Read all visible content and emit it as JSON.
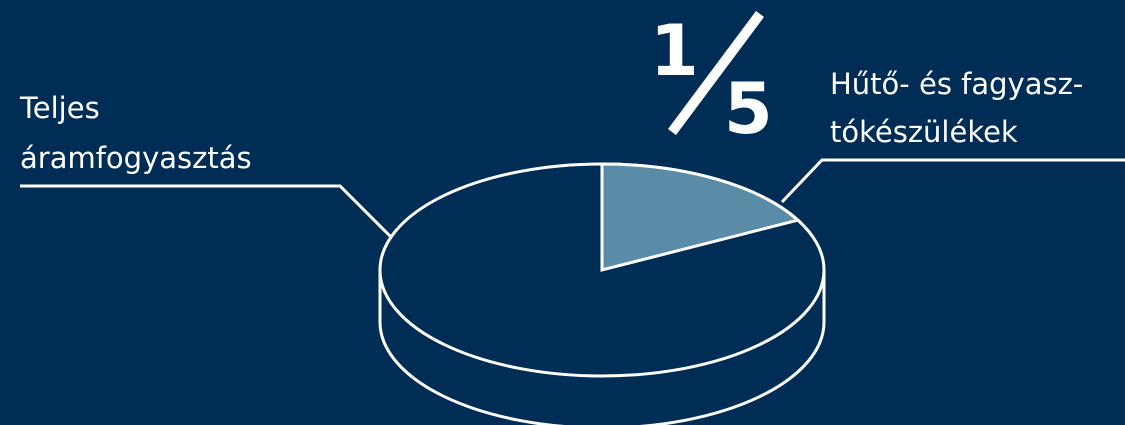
{
  "chart_data": {
    "type": "pie",
    "categories": [
      "Teljes áramfogyasztás",
      "Hűtő- és fagyasztókészülékek"
    ],
    "values": [
      0.8,
      0.2
    ],
    "fraction": {
      "numerator": "1",
      "denominator": "5"
    },
    "labels": {
      "total": [
        "Teljes",
        "áramfogyasztás"
      ],
      "slice": [
        "Hűtő- és fagyasz-",
        "tókészülékek"
      ]
    }
  },
  "colors": {
    "background": "#002d56",
    "outline": "#ffffff",
    "highlight_slice": "#5a8ba7"
  }
}
